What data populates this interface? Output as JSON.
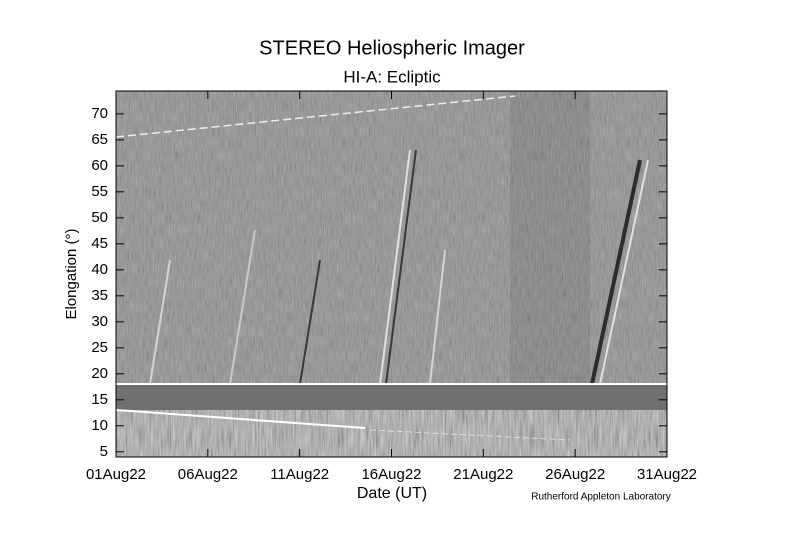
{
  "chart_data": {
    "type": "image",
    "title": "STEREO Heliospheric Imager",
    "subtitle": "HI-A: Ecliptic",
    "x_label": "Date (UT)",
    "y_label": "Elongation (°)",
    "credit": "Rutherford Appleton Laboratory",
    "xlim": [
      "2022-08-01",
      "2022-08-31"
    ],
    "xticks": [
      {
        "value": "2022-08-01",
        "label": "01Aug22"
      },
      {
        "value": "2022-08-06",
        "label": "06Aug22"
      },
      {
        "value": "2022-08-11",
        "label": "11Aug22"
      },
      {
        "value": "2022-08-16",
        "label": "16Aug22"
      },
      {
        "value": "2022-08-21",
        "label": "21Aug22"
      },
      {
        "value": "2022-08-26",
        "label": "26Aug22"
      },
      {
        "value": "2022-08-31",
        "label": "31Aug22"
      }
    ],
    "ylim": [
      4,
      74.4
    ],
    "yticks": [
      5,
      10,
      15,
      20,
      25,
      30,
      35,
      40,
      45,
      50,
      55,
      60,
      65,
      70
    ]
  }
}
